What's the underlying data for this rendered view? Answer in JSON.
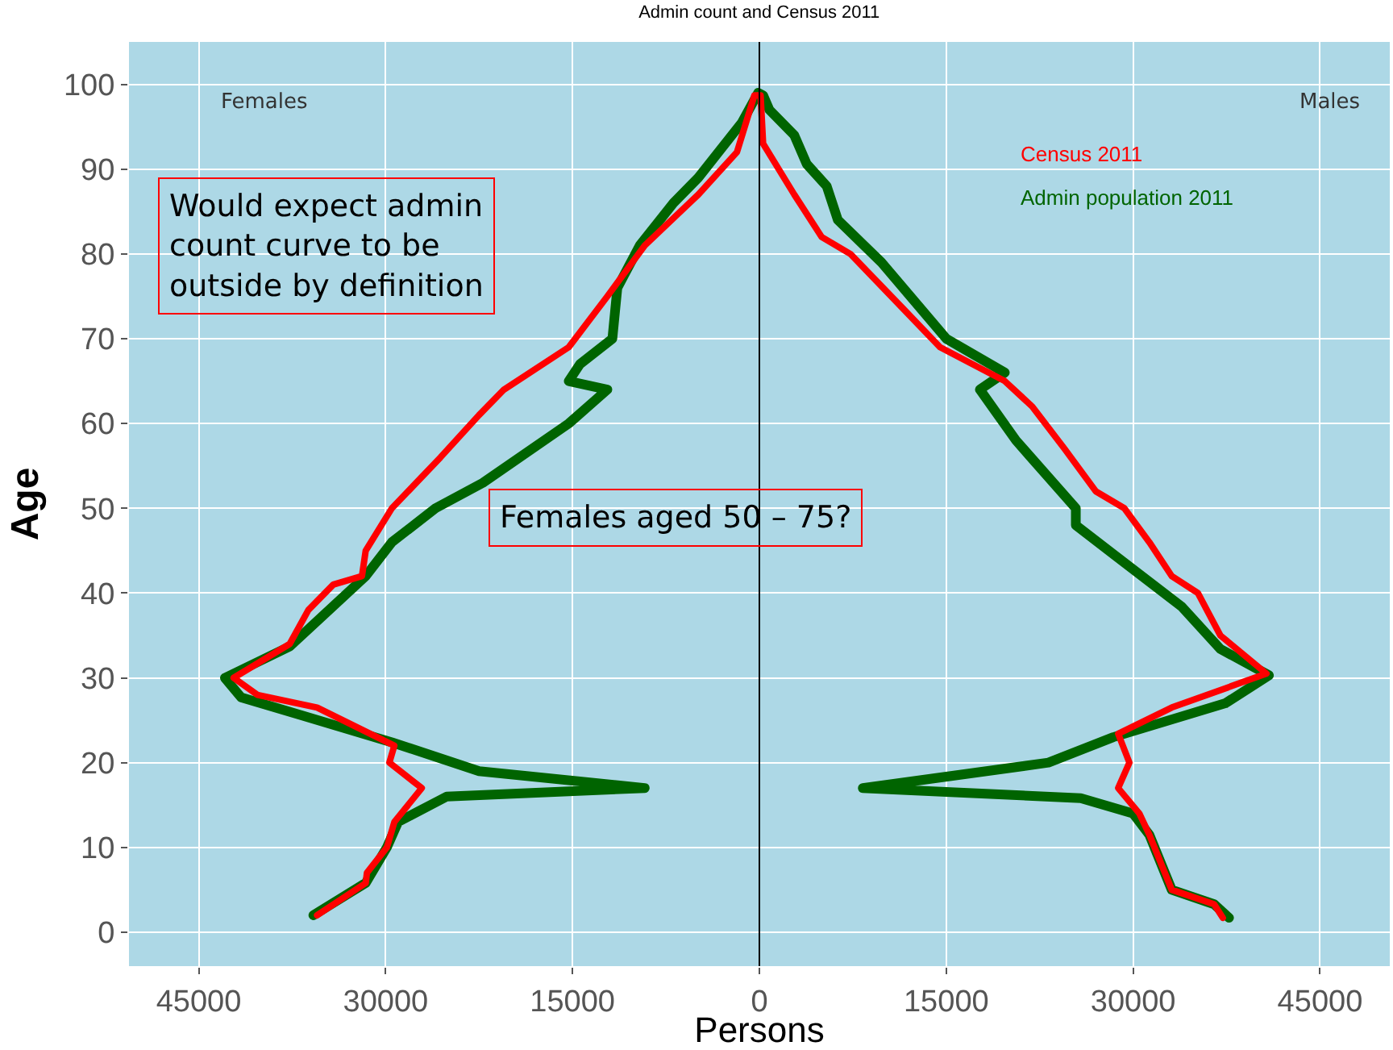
{
  "chart_data": {
    "type": "line",
    "title": "Admin count and Census 2011",
    "xlabel": "Persons",
    "ylabel": "Age",
    "annotations": [
      "Females",
      "Males",
      "Would expect admin\ncount curve to be\noutside by definition",
      "Females aged 50 – 75?"
    ],
    "xlim": [
      -50600,
      50600
    ],
    "ylim": [
      -4,
      105
    ],
    "xticks": [
      {
        "value": -45000,
        "label": "45000"
      },
      {
        "value": -30000,
        "label": "30000"
      },
      {
        "value": -15000,
        "label": "15000"
      },
      0,
      15000,
      30000,
      45000
    ],
    "yticks": [
      0,
      10,
      20,
      30,
      40,
      50,
      60,
      70,
      80,
      90,
      100
    ],
    "grid": true,
    "line_style": "solid",
    "marker": "none",
    "ref_lines": [
      {
        "axis": "x",
        "value": 0,
        "color": "#000000"
      }
    ],
    "series": [
      {
        "name": "Census 2011",
        "color": "#ff0000",
        "x": [
          -35500,
          -31600,
          -31500,
          -29900,
          -29300,
          -27100,
          -29700,
          -29300,
          -35500,
          -40300,
          -42200,
          -37700,
          -36200,
          -34200,
          -31900,
          -31600,
          -29500,
          -25600,
          -22500,
          -20500,
          -15300,
          -12200,
          -9200,
          -4900,
          -1800,
          -400,
          100,
          300,
          2800,
          5000,
          7300,
          11500,
          14500,
          19700,
          21900,
          24500,
          27000,
          29300,
          31300,
          33100,
          35200,
          37000,
          40700,
          33100,
          28800,
          29700,
          28800,
          30500,
          31300,
          33100,
          36500,
          37200
        ],
        "values": [
          2,
          5.8,
          7,
          10,
          13,
          17,
          20,
          22,
          26.5,
          28,
          30,
          34,
          38,
          41,
          42,
          45,
          50,
          56,
          61,
          64,
          69,
          75,
          81,
          87,
          92,
          98.7,
          98.7,
          93,
          87,
          82,
          80,
          73.6,
          69,
          65,
          62,
          57,
          52,
          50,
          46,
          42,
          40,
          35,
          30.5,
          26.5,
          23.4,
          20,
          17,
          14,
          11.5,
          5,
          3.3,
          1.7
        ]
      },
      {
        "name": "Admin population 2011",
        "color": "#006400",
        "x": [
          -35800,
          -31600,
          -29900,
          -29000,
          -25100,
          -9200,
          -22500,
          -29500,
          -36800,
          -41600,
          -42900,
          -37700,
          -31600,
          -29500,
          -26000,
          -22200,
          -15300,
          -12200,
          -15300,
          -14400,
          -11800,
          -11400,
          -9600,
          -6900,
          -4900,
          -1400,
          -100,
          300,
          800,
          2800,
          3800,
          5400,
          6300,
          9800,
          15000,
          19700,
          17700,
          20600,
          25400,
          25400,
          28400,
          33900,
          37000,
          40900,
          37400,
          28400,
          23200,
          8300,
          25800,
          30000,
          31300,
          33100,
          36500,
          37700
        ],
        "values": [
          2,
          5.8,
          10,
          13,
          16,
          17,
          19,
          22.4,
          25.6,
          27.7,
          30,
          33.7,
          42,
          46,
          50,
          53,
          60,
          64,
          65,
          67,
          70,
          76,
          81,
          86,
          89,
          95.5,
          99,
          98.7,
          97,
          94,
          90.6,
          88,
          84,
          79,
          70,
          66,
          64,
          58,
          50,
          48,
          44.6,
          38.4,
          33.4,
          30.3,
          27,
          23,
          20,
          17,
          15.8,
          14,
          11.5,
          5,
          3.3,
          1.7
        ]
      }
    ]
  }
}
